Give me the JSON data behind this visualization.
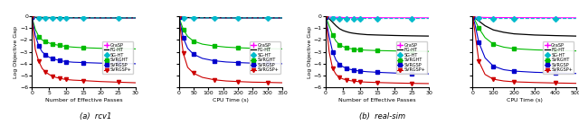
{
  "legend_labels": [
    "GraSP",
    "FG-HT",
    "SG-HT",
    "SVRGHT",
    "SVRGSP",
    "SVRGSP+"
  ],
  "colors": [
    "#ff00ff",
    "#000000",
    "#00bbcc",
    "#00bb00",
    "#0000cc",
    "#cc0000"
  ],
  "markers": [
    "+",
    "None",
    "D",
    "s",
    "s",
    "v"
  ],
  "linestyles": [
    "-",
    "-",
    "--",
    "-",
    "-",
    "-"
  ],
  "linewidths": [
    0.8,
    0.9,
    0.8,
    0.8,
    0.8,
    0.8
  ],
  "markersize": [
    4,
    0,
    3,
    3,
    3,
    3
  ],
  "rcv1_ep": {
    "xlabel": "Number of Effective Passes",
    "ylabel": "Log Objective Gap",
    "xlim": [
      0,
      30
    ],
    "ylim": [
      -6,
      0
    ],
    "yticks": [
      0,
      -1,
      -2,
      -3,
      -4,
      -5,
      -6
    ],
    "xticks": [
      0,
      5,
      10,
      15,
      20,
      25,
      30
    ],
    "curves": {
      "GraSP": {
        "x": [
          0,
          1,
          2,
          3,
          4,
          5,
          6,
          7,
          8,
          9,
          10,
          12,
          15,
          20,
          25,
          30
        ],
        "y": [
          -0.1,
          -0.11,
          -0.11,
          -0.12,
          -0.12,
          -0.12,
          -0.12,
          -0.13,
          -0.13,
          -0.13,
          -0.13,
          -0.13,
          -0.14,
          -0.14,
          -0.14,
          -0.15
        ]
      },
      "FG-HT": {
        "x": [
          0,
          1,
          2,
          3,
          4,
          5,
          6,
          7,
          8,
          9,
          10,
          12,
          15,
          20,
          25,
          30
        ],
        "y": [
          -0.08,
          -0.09,
          -0.09,
          -0.1,
          -0.1,
          -0.11,
          -0.11,
          -0.11,
          -0.12,
          -0.12,
          -0.12,
          -0.13,
          -0.13,
          -0.14,
          -0.14,
          -0.14
        ]
      },
      "SG-HT": {
        "x": [
          0,
          1,
          2,
          3,
          4,
          5,
          6,
          7,
          8,
          9,
          10,
          12,
          15,
          20,
          25,
          30
        ],
        "y": [
          -0.1,
          -0.135,
          -0.135,
          -0.14,
          -0.14,
          -0.14,
          -0.14,
          -0.14,
          -0.14,
          -0.14,
          -0.14,
          -0.14,
          -0.14,
          -0.14,
          -0.14,
          -0.14
        ]
      },
      "SVRGHT": {
        "x": [
          0,
          1,
          2,
          3,
          4,
          5,
          6,
          7,
          8,
          9,
          10,
          12,
          15,
          20,
          25,
          30
        ],
        "y": [
          -0.05,
          -1.1,
          -1.7,
          -2.0,
          -2.15,
          -2.25,
          -2.35,
          -2.4,
          -2.45,
          -2.5,
          -2.55,
          -2.6,
          -2.65,
          -2.7,
          -2.73,
          -2.75
        ]
      },
      "SVRGSP": {
        "x": [
          0,
          1,
          2,
          3,
          4,
          5,
          6,
          7,
          8,
          9,
          10,
          12,
          15,
          20,
          25,
          30
        ],
        "y": [
          -0.05,
          -1.6,
          -2.5,
          -3.0,
          -3.25,
          -3.45,
          -3.55,
          -3.65,
          -3.72,
          -3.78,
          -3.82,
          -3.87,
          -3.9,
          -3.95,
          -3.97,
          -4.0
        ]
      },
      "SVRGSP+": {
        "x": [
          0,
          1,
          2,
          3,
          4,
          5,
          6,
          7,
          8,
          9,
          10,
          12,
          15,
          20,
          25,
          30
        ],
        "y": [
          -0.05,
          -2.8,
          -3.8,
          -4.4,
          -4.7,
          -4.9,
          -5.05,
          -5.15,
          -5.22,
          -5.28,
          -5.33,
          -5.38,
          -5.42,
          -5.5,
          -5.55,
          -5.6
        ]
      }
    }
  },
  "rcv1_cpu": {
    "xlabel": "CPU Time (s)",
    "ylabel": "Log Objective Gap",
    "xlim": [
      0,
      350
    ],
    "ylim": [
      -6,
      0
    ],
    "yticks": [
      0,
      -1,
      -2,
      -3,
      -4,
      -5,
      -6
    ],
    "xticks": [
      0,
      50,
      100,
      150,
      200,
      250,
      300,
      350
    ],
    "curves": {
      "GraSP": {
        "x": [
          0,
          5,
          15,
          30,
          50,
          80,
          120,
          160,
          200,
          250,
          300,
          350
        ],
        "y": [
          -0.1,
          -0.11,
          -0.12,
          -0.12,
          -0.13,
          -0.13,
          -0.13,
          -0.14,
          -0.14,
          -0.14,
          -0.14,
          -0.15
        ]
      },
      "FG-HT": {
        "x": [
          0,
          5,
          15,
          30,
          50,
          80,
          120,
          160,
          200,
          250,
          300,
          350
        ],
        "y": [
          -0.08,
          -0.09,
          -0.1,
          -0.11,
          -0.12,
          -0.13,
          -0.13,
          -0.14,
          -0.14,
          -0.14,
          -0.14,
          -0.14
        ]
      },
      "SG-HT": {
        "x": [
          0,
          5,
          15,
          30,
          50,
          80,
          120,
          160,
          200,
          250,
          300,
          350
        ],
        "y": [
          -0.1,
          -0.135,
          -0.14,
          -0.14,
          -0.14,
          -0.14,
          -0.14,
          -0.14,
          -0.14,
          -0.14,
          -0.14,
          -0.14
        ]
      },
      "SVRGHT": {
        "x": [
          0,
          5,
          15,
          30,
          50,
          80,
          120,
          160,
          200,
          250,
          300,
          350
        ],
        "y": [
          -0.05,
          -0.4,
          -1.1,
          -1.7,
          -2.1,
          -2.35,
          -2.5,
          -2.6,
          -2.65,
          -2.7,
          -2.73,
          -2.75
        ]
      },
      "SVRGSP": {
        "x": [
          0,
          5,
          15,
          30,
          50,
          80,
          120,
          160,
          200,
          250,
          300,
          350
        ],
        "y": [
          -0.05,
          -0.6,
          -1.8,
          -2.7,
          -3.2,
          -3.55,
          -3.75,
          -3.85,
          -3.9,
          -3.95,
          -3.97,
          -4.0
        ]
      },
      "SVRGSP+": {
        "x": [
          0,
          5,
          15,
          30,
          50,
          80,
          120,
          160,
          200,
          250,
          300,
          350
        ],
        "y": [
          -0.05,
          -1.0,
          -3.1,
          -4.3,
          -4.8,
          -5.15,
          -5.35,
          -5.45,
          -5.5,
          -5.55,
          -5.57,
          -5.6
        ]
      }
    }
  },
  "realsim_ep": {
    "xlabel": "Number of Effective Passes",
    "ylabel": "Log Objective Gap",
    "xlim": [
      0,
      30
    ],
    "ylim": [
      -6,
      0
    ],
    "yticks": [
      0,
      -1,
      -2,
      -3,
      -4,
      -5,
      -6
    ],
    "xticks": [
      0,
      5,
      10,
      15,
      20,
      25,
      30
    ],
    "curves": {
      "GraSP": {
        "x": [
          0,
          1,
          2,
          3,
          4,
          5,
          6,
          7,
          8,
          9,
          10,
          12,
          15,
          20,
          25,
          30
        ],
        "y": [
          -0.05,
          -0.08,
          -0.09,
          -0.1,
          -0.1,
          -0.11,
          -0.11,
          -0.11,
          -0.12,
          -0.12,
          -0.12,
          -0.12,
          -0.12,
          -0.13,
          -0.13,
          -0.13
        ]
      },
      "FG-HT": {
        "x": [
          0,
          1,
          2,
          3,
          4,
          5,
          6,
          7,
          8,
          9,
          10,
          12,
          15,
          20,
          25,
          30
        ],
        "y": [
          -0.05,
          -0.2,
          -0.5,
          -0.8,
          -1.05,
          -1.2,
          -1.3,
          -1.38,
          -1.43,
          -1.47,
          -1.5,
          -1.55,
          -1.58,
          -1.62,
          -1.65,
          -1.67
        ]
      },
      "SG-HT": {
        "x": [
          0,
          1,
          2,
          3,
          4,
          5,
          6,
          7,
          8,
          9,
          10,
          12,
          15,
          20,
          25,
          30
        ],
        "y": [
          -0.05,
          -0.17,
          -0.18,
          -0.19,
          -0.19,
          -0.19,
          -0.19,
          -0.19,
          -0.19,
          -0.19,
          -0.19,
          -0.19,
          -0.19,
          -0.19,
          -0.19,
          -0.19
        ]
      },
      "SVRGHT": {
        "x": [
          0,
          1,
          2,
          3,
          4,
          5,
          6,
          7,
          8,
          9,
          10,
          12,
          15,
          20,
          25,
          30
        ],
        "y": [
          -0.05,
          -0.8,
          -1.6,
          -2.1,
          -2.4,
          -2.55,
          -2.65,
          -2.72,
          -2.76,
          -2.8,
          -2.83,
          -2.86,
          -2.89,
          -2.92,
          -2.94,
          -2.96
        ]
      },
      "SVRGSP": {
        "x": [
          0,
          1,
          2,
          3,
          4,
          5,
          6,
          7,
          8,
          9,
          10,
          12,
          15,
          20,
          25,
          30
        ],
        "y": [
          -0.05,
          -1.7,
          -3.0,
          -3.7,
          -4.05,
          -4.25,
          -4.38,
          -4.47,
          -4.53,
          -4.58,
          -4.62,
          -4.67,
          -4.72,
          -4.78,
          -4.82,
          -4.85
        ]
      },
      "SVRGSP+": {
        "x": [
          0,
          1,
          2,
          3,
          4,
          5,
          6,
          7,
          8,
          9,
          10,
          12,
          15,
          20,
          25,
          30
        ],
        "y": [
          -0.05,
          -3.0,
          -4.4,
          -4.9,
          -5.15,
          -5.28,
          -5.36,
          -5.42,
          -5.46,
          -5.49,
          -5.52,
          -5.55,
          -5.58,
          -5.62,
          -5.65,
          -5.67
        ]
      }
    }
  },
  "realsim_cpu": {
    "xlabel": "CPU Time (s)",
    "ylabel": "Log Objective Gap",
    "xlim": [
      0,
      500
    ],
    "ylim": [
      -6,
      0
    ],
    "yticks": [
      0,
      -1,
      -2,
      -3,
      -4,
      -5,
      -6
    ],
    "xticks": [
      0,
      100,
      200,
      300,
      400,
      500
    ],
    "curves": {
      "GraSP": {
        "x": [
          0,
          10,
          30,
          60,
          100,
          150,
          200,
          300,
          400,
          500
        ],
        "y": [
          -0.05,
          -0.08,
          -0.09,
          -0.1,
          -0.11,
          -0.11,
          -0.12,
          -0.12,
          -0.13,
          -0.13
        ]
      },
      "FG-HT": {
        "x": [
          0,
          10,
          30,
          60,
          100,
          150,
          200,
          300,
          400,
          500
        ],
        "y": [
          -0.05,
          -0.15,
          -0.4,
          -0.8,
          -1.15,
          -1.35,
          -1.48,
          -1.58,
          -1.63,
          -1.67
        ]
      },
      "SG-HT": {
        "x": [
          0,
          10,
          30,
          60,
          100,
          150,
          200,
          300,
          400,
          500
        ],
        "y": [
          -0.05,
          -0.17,
          -0.18,
          -0.19,
          -0.19,
          -0.19,
          -0.19,
          -0.19,
          -0.19,
          -0.19
        ]
      },
      "SVRGHT": {
        "x": [
          0,
          10,
          30,
          60,
          100,
          150,
          200,
          300,
          400,
          500
        ],
        "y": [
          -0.05,
          -0.3,
          -1.0,
          -1.8,
          -2.35,
          -2.6,
          -2.73,
          -2.83,
          -2.88,
          -2.92
        ]
      },
      "SVRGSP": {
        "x": [
          0,
          10,
          30,
          60,
          100,
          150,
          200,
          300,
          400,
          500
        ],
        "y": [
          -0.05,
          -0.6,
          -2.2,
          -3.5,
          -4.2,
          -4.5,
          -4.62,
          -4.72,
          -4.77,
          -4.82
        ]
      },
      "SVRGSP+": {
        "x": [
          0,
          10,
          30,
          60,
          100,
          150,
          200,
          300,
          400,
          500
        ],
        "y": [
          -0.05,
          -1.2,
          -3.8,
          -4.9,
          -5.3,
          -5.45,
          -5.52,
          -5.58,
          -5.62,
          -5.65
        ]
      }
    }
  },
  "subtitle_a": "(a)  rcv1",
  "subtitle_b": "(b)  real-sim"
}
